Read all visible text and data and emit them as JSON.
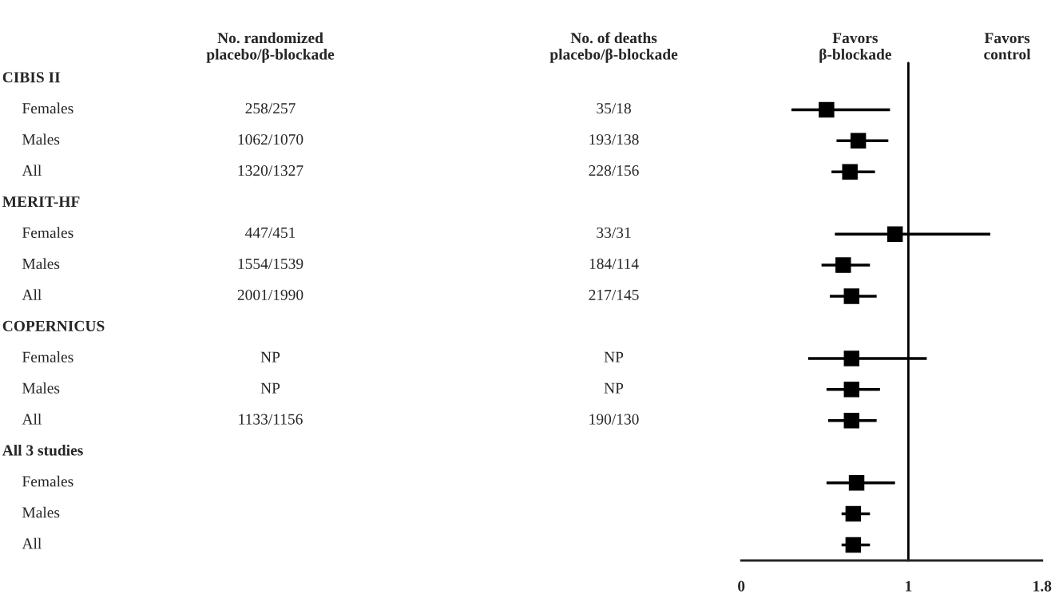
{
  "chart_data": [
    {
      "type": "other",
      "categories": [
        "No. randomized\nplacebo/β-blockade",
        "No. of deaths\nplacebo/β-blockade"
      ],
      "y_categories": [
        "CIBIS II",
        "Females",
        "Males",
        "All",
        "MERIT-HF",
        "Females",
        "Males",
        "All",
        "COPERNICUS",
        "Females",
        "Males",
        "All",
        "All 3 studies",
        "Females",
        "Males",
        "All"
      ],
      "cell_labels": [
        [
          null,
          null
        ],
        [
          "258/257",
          "35/18"
        ],
        [
          "1062/1070",
          "193/138"
        ],
        [
          "1320/1327",
          "228/156"
        ],
        [
          null,
          null
        ],
        [
          "447/451",
          "33/31"
        ],
        [
          "1554/1539",
          "184/114"
        ],
        [
          "2001/1990",
          "217/145"
        ],
        [
          null,
          null
        ],
        [
          "NP",
          "NP"
        ],
        [
          "NP",
          "NP"
        ],
        [
          "1133/1156",
          "190/130"
        ],
        [
          null,
          null
        ],
        [
          null,
          null
        ],
        [
          null,
          null
        ],
        [
          null,
          null
        ]
      ]
    },
    {
      "type": "scatter",
      "orientation": "horizontal",
      "categories": [
        null,
        null,
        null,
        null,
        null,
        null,
        null,
        null,
        null,
        null,
        null,
        null,
        null,
        null,
        null,
        null
      ],
      "series": [
        {
          "color": "#000000",
          "values": [
            null,
            0.51,
            0.7,
            0.65,
            null,
            0.92,
            0.61,
            0.66,
            null,
            0.66,
            0.66,
            0.66,
            null,
            0.69,
            0.67,
            0.67
          ],
          "errors": [
            null,
            [
              0.3,
              0.89
            ],
            [
              0.57,
              0.88
            ],
            [
              0.54,
              0.8
            ],
            null,
            [
              0.56,
              1.49
            ],
            [
              0.48,
              0.77
            ],
            [
              0.53,
              0.81
            ],
            null,
            [
              0.4,
              1.11
            ],
            [
              0.51,
              0.83
            ],
            [
              0.52,
              0.81
            ],
            null,
            [
              0.51,
              0.92
            ],
            [
              0.6,
              0.77
            ],
            [
              0.6,
              0.77
            ]
          ]
        }
      ],
      "marker": "square",
      "xlim": [
        0,
        1.8
      ],
      "xticks": [
        0,
        1,
        1.8
      ],
      "tick_labels": "x",
      "grid": false,
      "ref_lines": [
        {
          "axis": "x",
          "value": 1
        }
      ],
      "annotations": [
        "Favors\nβ-blockade",
        "Favors\ncontrol"
      ]
    }
  ]
}
